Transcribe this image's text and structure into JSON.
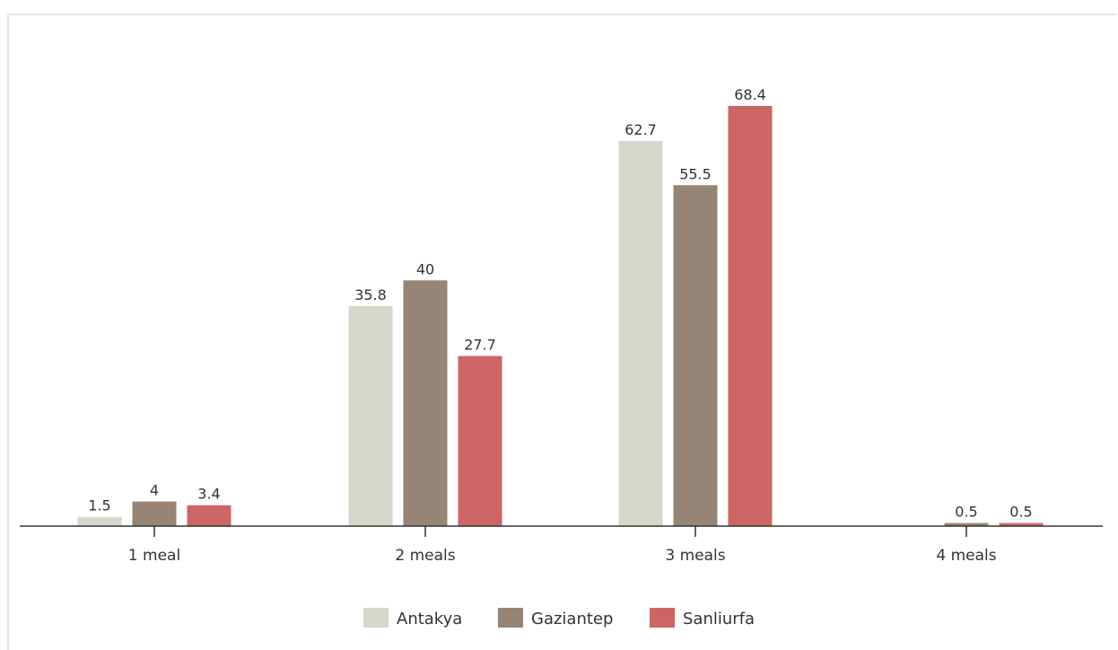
{
  "chart_data": {
    "type": "bar",
    "categories": [
      "1 meal",
      "2 meals",
      "3 meals",
      "4 meals"
    ],
    "series": [
      {
        "name": "Antakya",
        "color": "#d3d7cc",
        "values": [
          1.5,
          35.8,
          62.7,
          null
        ],
        "labels": [
          "1.5",
          "35.8",
          "62.7",
          ""
        ]
      },
      {
        "name": "Gaziantep",
        "color": "#968575",
        "values": [
          4,
          40,
          55.5,
          0.5
        ],
        "labels": [
          "4",
          "40",
          "55.5",
          "0.5"
        ]
      },
      {
        "name": "Sanliurfa",
        "color": "#cd6565",
        "values": [
          3.4,
          27.7,
          68.4,
          0.5
        ],
        "labels": [
          "3.4",
          "27.7",
          "68.4",
          "0.5"
        ]
      }
    ],
    "title": "",
    "xlabel": "",
    "ylabel": "",
    "ylim": [
      0,
      68.4
    ],
    "grid": false,
    "legend_position": "bottom-center",
    "data_labels": true
  }
}
